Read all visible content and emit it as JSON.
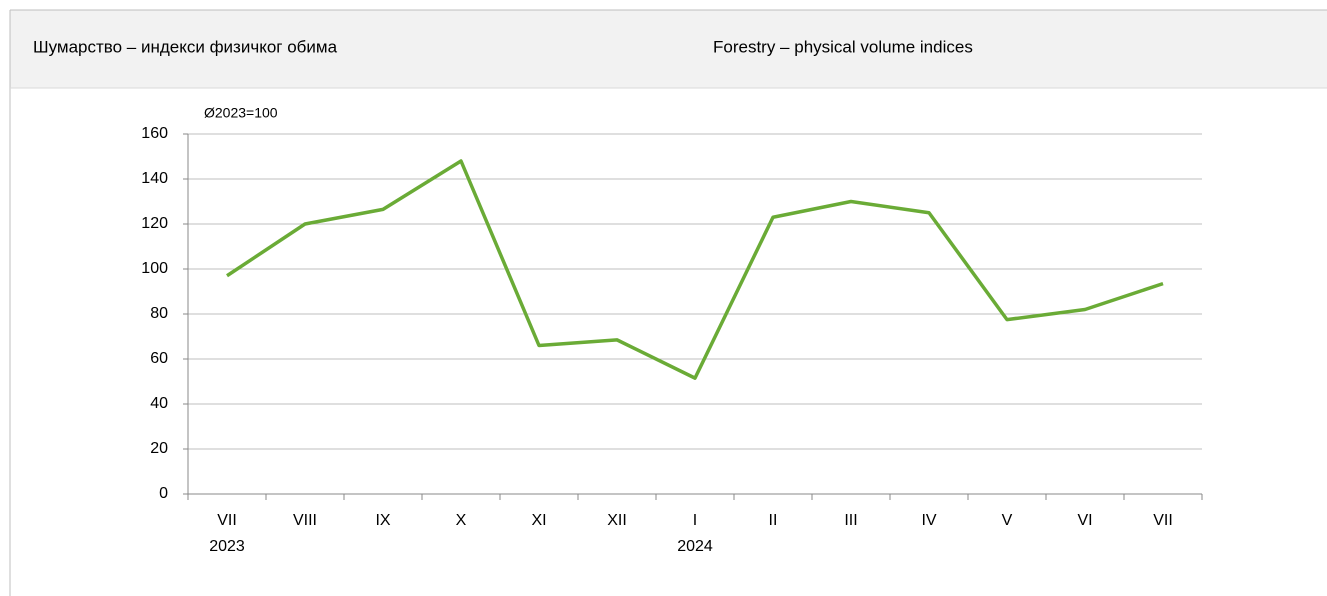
{
  "chart_data": {
    "type": "line",
    "title": "Шумарство – индекси физичког обима",
    "title_en": "Forestry – physical volume indices",
    "ylabel": "Ø2023=100",
    "categories": [
      "VII",
      "VIII",
      "IX",
      "X",
      "XI",
      "XII",
      "I",
      "II",
      "III",
      "IV",
      "V",
      "VI",
      "VII"
    ],
    "category_years": [
      "2023",
      null,
      null,
      null,
      null,
      null,
      "2024",
      null,
      null,
      null,
      null,
      null,
      null
    ],
    "series": [
      {
        "name": "Forestry",
        "color": "#6aab36",
        "values": [
          97,
          120,
          126.5,
          148,
          66,
          68.5,
          51.5,
          123,
          130,
          125,
          77.5,
          82,
          93.5
        ]
      }
    ],
    "ylim": [
      0,
      160
    ],
    "yticks": [
      0,
      20,
      40,
      60,
      80,
      100,
      120,
      140,
      160
    ],
    "grid": true
  }
}
